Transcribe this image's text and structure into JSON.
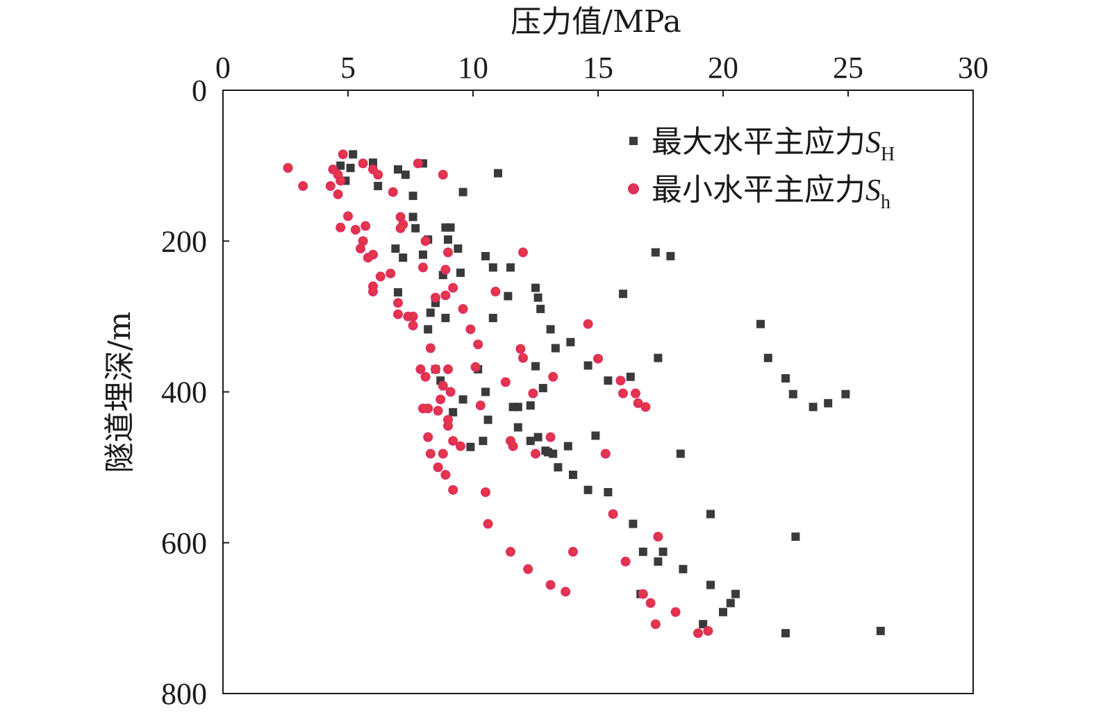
{
  "chart_data": {
    "type": "scatter",
    "xlabel": "压力值/MPa",
    "ylabel": "隧道埋深/m",
    "xlim": [
      0,
      30
    ],
    "ylim": [
      0,
      800
    ],
    "x_axis_position": "top",
    "y_axis_inverted": true,
    "x_ticks": [
      "0",
      "5",
      "10",
      "15",
      "20",
      "25",
      "30"
    ],
    "y_ticks": [
      "0",
      "200",
      "400",
      "600",
      "800"
    ],
    "grid": false,
    "legend_position": "top-right",
    "series": [
      {
        "name": "最大水平主应力SH",
        "label_text": "最大水平主应力",
        "label_symbol": "S",
        "label_sub": "H",
        "marker": "square",
        "color": "#3a3a3a",
        "points": [
          [
            5.2,
            85
          ],
          [
            6.0,
            96
          ],
          [
            4.7,
            100
          ],
          [
            5.1,
            103
          ],
          [
            8.0,
            97
          ],
          [
            7.0,
            105
          ],
          [
            7.3,
            112
          ],
          [
            4.9,
            120
          ],
          [
            6.2,
            127
          ],
          [
            7.6,
            140
          ],
          [
            9.6,
            135
          ],
          [
            11.0,
            110
          ],
          [
            7.6,
            168
          ],
          [
            7.7,
            183
          ],
          [
            8.9,
            182
          ],
          [
            9.1,
            182
          ],
          [
            8.2,
            198
          ],
          [
            9.0,
            198
          ],
          [
            6.9,
            210
          ],
          [
            9.4,
            210
          ],
          [
            7.2,
            222
          ],
          [
            8.0,
            218
          ],
          [
            10.5,
            220
          ],
          [
            10.8,
            235
          ],
          [
            11.5,
            235
          ],
          [
            8.8,
            245
          ],
          [
            9.5,
            242
          ],
          [
            7.0,
            268
          ],
          [
            11.4,
            273
          ],
          [
            12.5,
            262
          ],
          [
            12.6,
            275
          ],
          [
            12.7,
            290
          ],
          [
            8.5,
            282
          ],
          [
            8.3,
            295
          ],
          [
            8.9,
            302
          ],
          [
            10.8,
            302
          ],
          [
            8.2,
            317
          ],
          [
            13.1,
            317
          ],
          [
            13.3,
            342
          ],
          [
            13.9,
            334
          ],
          [
            16.0,
            270
          ],
          [
            17.3,
            215
          ],
          [
            17.9,
            220
          ],
          [
            21.5,
            310
          ],
          [
            21.8,
            355
          ],
          [
            14.6,
            365
          ],
          [
            12.5,
            366
          ],
          [
            10.2,
            370
          ],
          [
            8.5,
            370
          ],
          [
            8.7,
            385
          ],
          [
            15.4,
            385
          ],
          [
            16.3,
            380
          ],
          [
            12.8,
            395
          ],
          [
            10.5,
            400
          ],
          [
            9.6,
            410
          ],
          [
            11.6,
            420
          ],
          [
            11.8,
            420
          ],
          [
            12.3,
            418
          ],
          [
            9.2,
            427
          ],
          [
            10.6,
            437
          ],
          [
            11.8,
            447
          ],
          [
            17.4,
            355
          ],
          [
            22.5,
            382
          ],
          [
            22.8,
            403
          ],
          [
            24.9,
            403
          ],
          [
            24.2,
            415
          ],
          [
            23.6,
            420
          ],
          [
            12.6,
            460
          ],
          [
            12.3,
            465
          ],
          [
            10.4,
            465
          ],
          [
            9.9,
            473
          ],
          [
            13.0,
            480
          ],
          [
            13.2,
            482
          ],
          [
            12.9,
            478
          ],
          [
            13.8,
            472
          ],
          [
            14.9,
            458
          ],
          [
            18.3,
            482
          ],
          [
            13.4,
            500
          ],
          [
            14.0,
            510
          ],
          [
            14.6,
            530
          ],
          [
            15.4,
            533
          ],
          [
            16.4,
            575
          ],
          [
            19.5,
            562
          ],
          [
            22.9,
            592
          ],
          [
            16.8,
            612
          ],
          [
            17.6,
            612
          ],
          [
            17.4,
            625
          ],
          [
            18.4,
            635
          ],
          [
            16.7,
            668
          ],
          [
            19.5,
            656
          ],
          [
            20.5,
            668
          ],
          [
            20.3,
            680
          ],
          [
            20.0,
            692
          ],
          [
            19.2,
            708
          ],
          [
            22.5,
            720
          ],
          [
            26.3,
            717
          ]
        ]
      },
      {
        "name": "最小水平主应力Sh",
        "label_text": "最小水平主应力",
        "label_symbol": "S",
        "label_sub": "h",
        "marker": "circle",
        "color": "#e0305a",
        "highlight_color": "#e84030",
        "points": [
          [
            2.6,
            103
          ],
          [
            3.2,
            127
          ],
          [
            4.4,
            105
          ],
          [
            4.3,
            127
          ],
          [
            4.6,
            112
          ],
          [
            4.8,
            85
          ],
          [
            4.7,
            120
          ],
          [
            4.6,
            138
          ],
          [
            5.6,
            97
          ],
          [
            6.0,
            105
          ],
          [
            6.2,
            112
          ],
          [
            6.8,
            135
          ],
          [
            7.8,
            97
          ],
          [
            8.8,
            112
          ],
          [
            5.0,
            167
          ],
          [
            4.7,
            182
          ],
          [
            5.3,
            185
          ],
          [
            5.7,
            180
          ],
          [
            5.6,
            200
          ],
          [
            5.5,
            210
          ],
          [
            5.8,
            222
          ],
          [
            6.0,
            218
          ],
          [
            7.1,
            168
          ],
          [
            7.2,
            178
          ],
          [
            7.1,
            183
          ],
          [
            8.1,
            200
          ],
          [
            9.0,
            215
          ],
          [
            8.0,
            235
          ],
          [
            8.9,
            238
          ],
          [
            12.0,
            215
          ],
          [
            6.3,
            247
          ],
          [
            6.7,
            243
          ],
          [
            6.0,
            260
          ],
          [
            6.0,
            267
          ],
          [
            7.0,
            282
          ],
          [
            7.0,
            297
          ],
          [
            7.4,
            300
          ],
          [
            7.6,
            300
          ],
          [
            7.6,
            312
          ],
          [
            8.5,
            275
          ],
          [
            8.9,
            272
          ],
          [
            9.2,
            262
          ],
          [
            9.6,
            290
          ],
          [
            10.9,
            267
          ],
          [
            9.9,
            317
          ],
          [
            8.3,
            342
          ],
          [
            10.2,
            337
          ],
          [
            11.9,
            343
          ],
          [
            12.0,
            355
          ],
          [
            15.0,
            356
          ],
          [
            14.6,
            310
          ],
          [
            10.1,
            367
          ],
          [
            9.0,
            370
          ],
          [
            8.5,
            370
          ],
          [
            7.9,
            370
          ],
          [
            8.1,
            380
          ],
          [
            11.3,
            387
          ],
          [
            13.2,
            380
          ],
          [
            15.9,
            385
          ],
          [
            8.8,
            392
          ],
          [
            9.1,
            400
          ],
          [
            8.7,
            410
          ],
          [
            8.2,
            422
          ],
          [
            8.0,
            422
          ],
          [
            8.6,
            425
          ],
          [
            10.3,
            418
          ],
          [
            12.4,
            402
          ],
          [
            16.0,
            402
          ],
          [
            16.5,
            402
          ],
          [
            16.6,
            415
          ],
          [
            16.9,
            420
          ],
          [
            9.0,
            437
          ],
          [
            9.0,
            445
          ],
          [
            8.2,
            460
          ],
          [
            9.2,
            465
          ],
          [
            9.5,
            472
          ],
          [
            8.8,
            482
          ],
          [
            8.3,
            482
          ],
          [
            8.6,
            500
          ],
          [
            8.9,
            510
          ],
          [
            11.5,
            465
          ],
          [
            11.6,
            472
          ],
          [
            12.5,
            482
          ],
          [
            13.1,
            460
          ],
          [
            15.3,
            482
          ],
          [
            9.2,
            530
          ],
          [
            10.5,
            533
          ],
          [
            10.6,
            575
          ],
          [
            15.6,
            562
          ],
          [
            17.4,
            592
          ],
          [
            11.5,
            612
          ],
          [
            12.2,
            635
          ],
          [
            14.0,
            612
          ],
          [
            16.1,
            625
          ],
          [
            13.1,
            656
          ],
          [
            13.7,
            665
          ],
          [
            16.8,
            668
          ],
          [
            17.1,
            680
          ],
          [
            18.1,
            692
          ],
          [
            17.3,
            708
          ],
          [
            19.0,
            720
          ],
          [
            19.4,
            717
          ]
        ]
      }
    ]
  }
}
